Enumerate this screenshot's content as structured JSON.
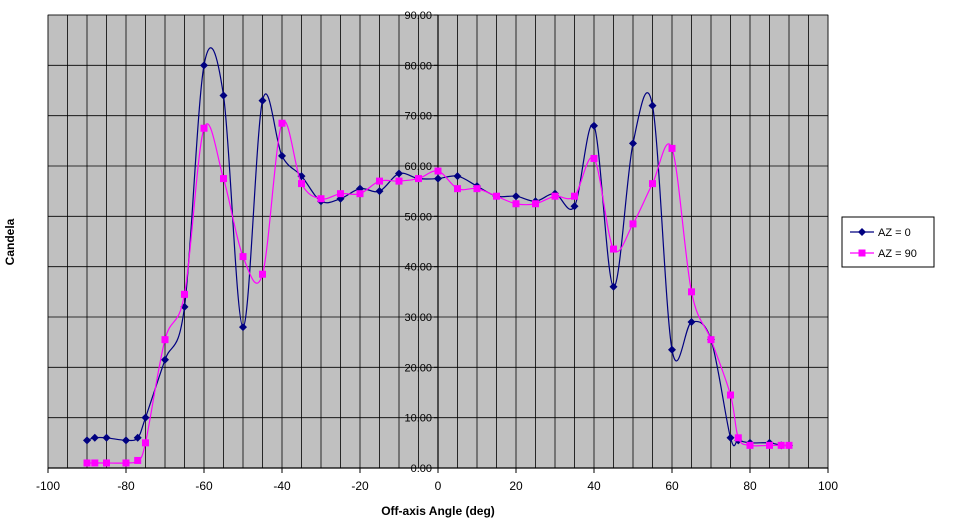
{
  "chart_data": {
    "type": "line",
    "title": "",
    "xlabel": "Off-axis Angle (deg)",
    "ylabel": "Candela",
    "xlim": [
      -100,
      100
    ],
    "ylim": [
      0,
      90
    ],
    "x_ticks": [
      "-100",
      "-80",
      "-60",
      "-40",
      "-20",
      "0",
      "20",
      "40",
      "60",
      "80",
      "100"
    ],
    "y_ticks": [
      "0.00",
      "10.00",
      "20.00",
      "30.00",
      "40.00",
      "50.00",
      "60.00",
      "70.00",
      "80.00",
      "90.00"
    ],
    "grid": true,
    "legend_position": "right",
    "plot_background": "#c0c0c0",
    "series": [
      {
        "name": "AZ = 0",
        "color": "#000080",
        "marker": "diamond",
        "x": [
          -90,
          -88,
          -85,
          -80,
          -77,
          -75,
          -70,
          -65,
          -60,
          -55,
          -50,
          -45,
          -40,
          -35,
          -30,
          -25,
          -20,
          -15,
          -10,
          -5,
          0,
          5,
          10,
          15,
          20,
          25,
          30,
          35,
          40,
          45,
          50,
          55,
          60,
          65,
          70,
          75,
          77,
          80,
          85,
          88,
          90
        ],
        "y": [
          5.5,
          6,
          6,
          5.5,
          6,
          10,
          21.5,
          32,
          80,
          74,
          28,
          73,
          62,
          58,
          53,
          53.5,
          55.5,
          55,
          58.5,
          57.5,
          57.5,
          58,
          56,
          54,
          54,
          53,
          54.5,
          52,
          68,
          36,
          64.5,
          72,
          23.5,
          29,
          25.5,
          6,
          5.5,
          5,
          5,
          4.5,
          4.5
        ]
      },
      {
        "name": "AZ = 90",
        "color": "#ff00ff",
        "marker": "square",
        "x": [
          -90,
          -88,
          -85,
          -80,
          -77,
          -75,
          -70,
          -65,
          -60,
          -55,
          -50,
          -45,
          -40,
          -35,
          -30,
          -25,
          -20,
          -15,
          -10,
          -5,
          0,
          5,
          10,
          15,
          20,
          25,
          30,
          35,
          40,
          45,
          50,
          55,
          60,
          65,
          70,
          75,
          77,
          80,
          85,
          88,
          90
        ],
        "y": [
          1,
          1,
          1,
          1,
          1.5,
          5,
          25.5,
          34.5,
          67.5,
          57.5,
          42,
          38.5,
          68.5,
          56.5,
          53.5,
          54.5,
          54.5,
          57,
          57,
          57.5,
          59,
          55.5,
          55.5,
          54,
          52.5,
          52.5,
          54,
          54,
          61.5,
          43.5,
          48.5,
          56.5,
          63.5,
          35,
          25.5,
          14.5,
          6,
          4.5,
          4.5,
          4.5,
          4.5
        ]
      }
    ]
  }
}
